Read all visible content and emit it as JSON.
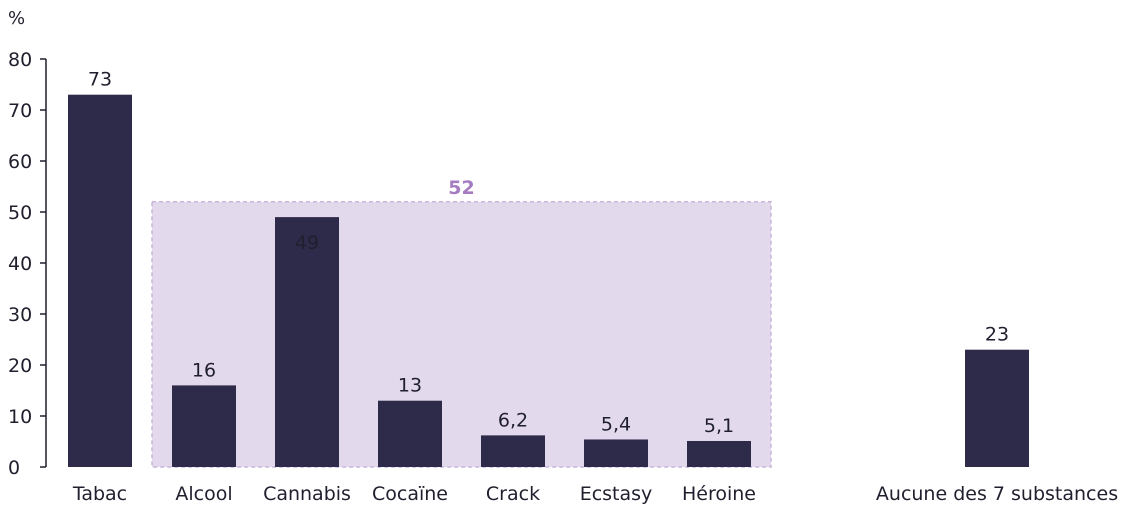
{
  "chart_data": {
    "type": "bar",
    "unit_label": "%",
    "ylim": [
      0,
      80
    ],
    "yticks": [
      0,
      10,
      20,
      30,
      40,
      50,
      60,
      70,
      80
    ],
    "categories": [
      "Tabac",
      "Alcool",
      "Cannabis",
      "Cocaïne",
      "Crack",
      "Ecstasy",
      "Héroine",
      "Aucune des 7 substances"
    ],
    "values": [
      73,
      16,
      49,
      13,
      6.2,
      5.4,
      5.1,
      23
    ],
    "value_labels": [
      "73",
      "16",
      "49",
      "13",
      "6,2",
      "5,4",
      "5,1",
      "23"
    ],
    "group_highlight": {
      "categories": [
        "Alcool",
        "Cannabis",
        "Cocaïne",
        "Crack",
        "Ecstasy",
        "Héroine"
      ],
      "value": 52,
      "label": "52"
    },
    "grid": false,
    "colors": {
      "bar": "#2e2b4a",
      "group_fill": "#e3d9ec",
      "group_border": "#c9b5d8",
      "group_label": "#a57cc0",
      "axis": "#1f1f2e"
    }
  }
}
